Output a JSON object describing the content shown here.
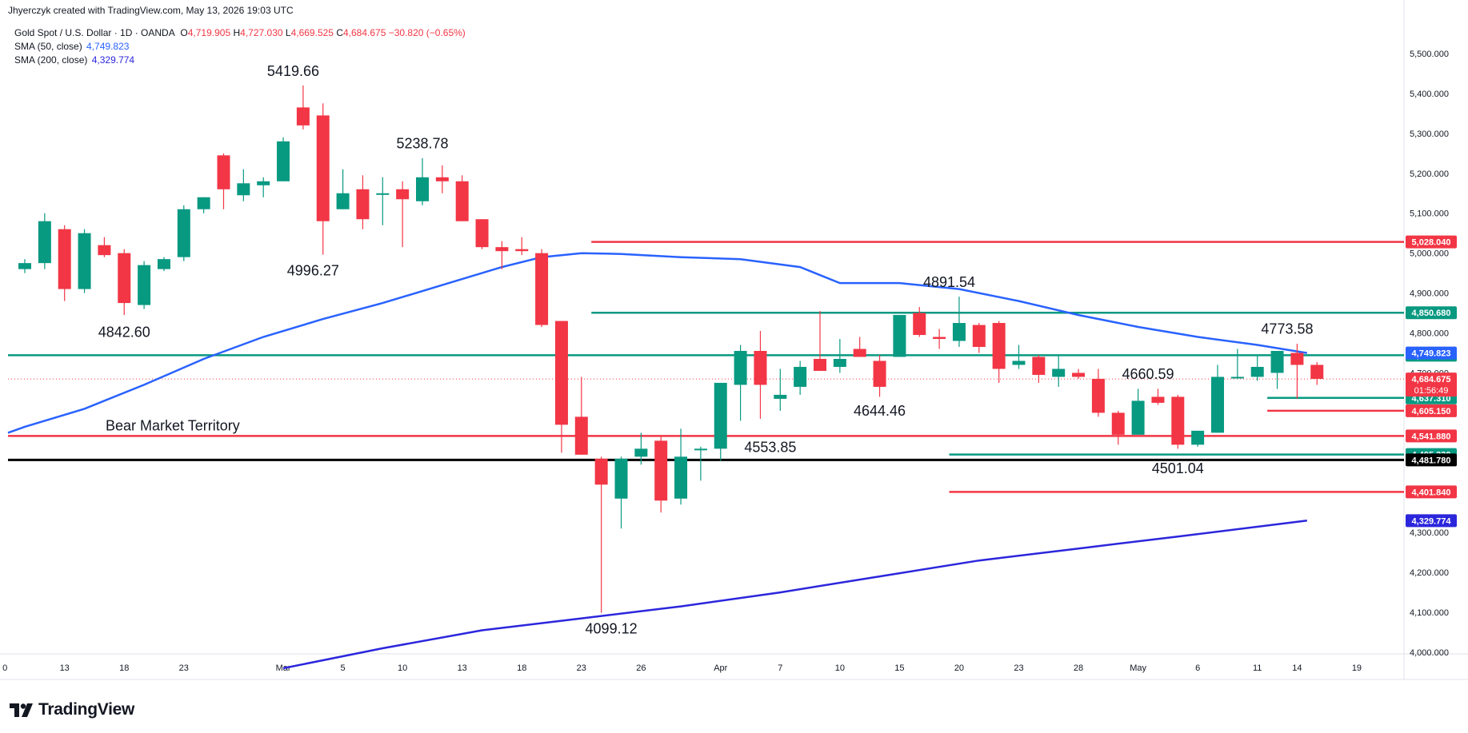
{
  "header": {
    "attribution": "Jhyerczyk created with TradingView.com, May 13, 2026 19:03 UTC"
  },
  "legend": {
    "title": "Gold Spot / U.S. Dollar · 1D · OANDA",
    "ohlc": [
      {
        "key": "O",
        "value": "4,719.905"
      },
      {
        "key": "H",
        "value": "4,727.030"
      },
      {
        "key": "L",
        "value": "4,669.525"
      },
      {
        "key": "C",
        "value": "4,684.675"
      }
    ],
    "change": "−30.820 (−0.65%)",
    "sma50": {
      "label": "SMA (50, close)",
      "value": "4,749.823",
      "color": "#2962ff"
    },
    "sma200": {
      "label": "SMA (200, close)",
      "value": "4,329.774",
      "color": "#2b26dc"
    }
  },
  "brand": {
    "name": "TradingView"
  },
  "chart_data": {
    "type": "candlestick",
    "instrument": "Gold Spot / U.S. Dollar",
    "timeframe": "1D",
    "ylim": [
      3950,
      5560
    ],
    "y_ticks": [
      {
        "value": 4000,
        "label": "4,000.000"
      },
      {
        "value": 4100,
        "label": "4,100.000"
      },
      {
        "value": 4200,
        "label": "4,200.000"
      },
      {
        "value": 4300,
        "label": "4,300.000"
      },
      {
        "value": 4400,
        "label": "4,400.000"
      },
      {
        "value": 4500,
        "label": "4,500.000"
      },
      {
        "value": 4600,
        "label": "4,600.000"
      },
      {
        "value": 4700,
        "label": "4,700.000"
      },
      {
        "value": 4800,
        "label": "4,800.000"
      },
      {
        "value": 4900,
        "label": "4,900.000"
      },
      {
        "value": 5000,
        "label": "5,000.000"
      },
      {
        "value": 5100,
        "label": "5,100.000"
      },
      {
        "value": 5200,
        "label": "5,200.000"
      },
      {
        "value": 5300,
        "label": "5,300.000"
      },
      {
        "value": 5400,
        "label": "5,400.000"
      },
      {
        "value": 5500,
        "label": "5,500.000"
      }
    ],
    "x_ticks": [
      {
        "i": -1,
        "label": "0"
      },
      {
        "i": 2,
        "label": "13"
      },
      {
        "i": 5,
        "label": "18"
      },
      {
        "i": 8,
        "label": "23"
      },
      {
        "i": 13,
        "label": "Mar"
      },
      {
        "i": 16,
        "label": "5"
      },
      {
        "i": 19,
        "label": "10"
      },
      {
        "i": 22,
        "label": "13"
      },
      {
        "i": 25,
        "label": "18"
      },
      {
        "i": 28,
        "label": "23"
      },
      {
        "i": 31,
        "label": "26"
      },
      {
        "i": 35,
        "label": "Apr"
      },
      {
        "i": 38,
        "label": "7"
      },
      {
        "i": 41,
        "label": "10"
      },
      {
        "i": 44,
        "label": "15"
      },
      {
        "i": 47,
        "label": "20"
      },
      {
        "i": 50,
        "label": "23"
      },
      {
        "i": 53,
        "label": "28"
      },
      {
        "i": 56,
        "label": "May"
      },
      {
        "i": 59,
        "label": "6"
      },
      {
        "i": 62,
        "label": "11"
      },
      {
        "i": 64,
        "label": "14"
      },
      {
        "i": 67,
        "label": "19"
      }
    ],
    "candles": [
      {
        "o": 4960,
        "h": 4985,
        "l": 4950,
        "c": 4975
      },
      {
        "o": 4975,
        "h": 5100,
        "l": 4960,
        "c": 5080
      },
      {
        "o": 5060,
        "h": 5070,
        "l": 4880,
        "c": 4910
      },
      {
        "o": 4910,
        "h": 5060,
        "l": 4900,
        "c": 5050
      },
      {
        "o": 5020,
        "h": 5040,
        "l": 4990,
        "c": 4995
      },
      {
        "o": 5000,
        "h": 5010,
        "l": 4845,
        "c": 4875
      },
      {
        "o": 4870,
        "h": 4980,
        "l": 4860,
        "c": 4970
      },
      {
        "o": 4960,
        "h": 4990,
        "l": 4955,
        "c": 4985
      },
      {
        "o": 4990,
        "h": 5120,
        "l": 4980,
        "c": 5110
      },
      {
        "o": 5110,
        "h": 5140,
        "l": 5100,
        "c": 5140
      },
      {
        "o": 5245,
        "h": 5250,
        "l": 5110,
        "c": 5160
      },
      {
        "o": 5145,
        "h": 5210,
        "l": 5130,
        "c": 5175
      },
      {
        "o": 5170,
        "h": 5190,
        "l": 5140,
        "c": 5180
      },
      {
        "o": 5180,
        "h": 5290,
        "l": 5180,
        "c": 5280
      },
      {
        "o": 5365,
        "h": 5420,
        "l": 5310,
        "c": 5320
      },
      {
        "o": 5345,
        "h": 5375,
        "l": 4996,
        "c": 5080
      },
      {
        "o": 5110,
        "h": 5210,
        "l": 5110,
        "c": 5150
      },
      {
        "o": 5160,
        "h": 5195,
        "l": 5060,
        "c": 5085
      },
      {
        "o": 5150,
        "h": 5190,
        "l": 5070,
        "c": 5150
      },
      {
        "o": 5160,
        "h": 5180,
        "l": 5015,
        "c": 5135
      },
      {
        "o": 5130,
        "h": 5238,
        "l": 5120,
        "c": 5190
      },
      {
        "o": 5190,
        "h": 5220,
        "l": 5150,
        "c": 5180
      },
      {
        "o": 5180,
        "h": 5195,
        "l": 5080,
        "c": 5080
      },
      {
        "o": 5085,
        "h": 5085,
        "l": 5010,
        "c": 5015
      },
      {
        "o": 5015,
        "h": 5030,
        "l": 4960,
        "c": 5005
      },
      {
        "o": 5010,
        "h": 5040,
        "l": 4995,
        "c": 5005
      },
      {
        "o": 5000,
        "h": 5010,
        "l": 4815,
        "c": 4820
      },
      {
        "o": 4830,
        "h": 4830,
        "l": 4500,
        "c": 4570
      },
      {
        "o": 4590,
        "h": 4690,
        "l": 4495,
        "c": 4495
      },
      {
        "o": 4485,
        "h": 4490,
        "l": 4099,
        "c": 4420
      },
      {
        "o": 4385,
        "h": 4490,
        "l": 4310,
        "c": 4485
      },
      {
        "o": 4490,
        "h": 4550,
        "l": 4470,
        "c": 4510
      },
      {
        "o": 4530,
        "h": 4540,
        "l": 4350,
        "c": 4380
      },
      {
        "o": 4385,
        "h": 4560,
        "l": 4370,
        "c": 4490
      },
      {
        "o": 4510,
        "h": 4515,
        "l": 4430,
        "c": 4510
      },
      {
        "o": 4510,
        "h": 4675,
        "l": 4480,
        "c": 4675
      },
      {
        "o": 4670,
        "h": 4770,
        "l": 4580,
        "c": 4755
      },
      {
        "o": 4755,
        "h": 4805,
        "l": 4585,
        "c": 4670
      },
      {
        "o": 4635,
        "h": 4710,
        "l": 4605,
        "c": 4645
      },
      {
        "o": 4665,
        "h": 4730,
        "l": 4645,
        "c": 4715
      },
      {
        "o": 4735,
        "h": 4855,
        "l": 4705,
        "c": 4705
      },
      {
        "o": 4715,
        "h": 4785,
        "l": 4700,
        "c": 4735
      },
      {
        "o": 4760,
        "h": 4790,
        "l": 4740,
        "c": 4740
      },
      {
        "o": 4730,
        "h": 4745,
        "l": 4640,
        "c": 4665
      },
      {
        "o": 4740,
        "h": 4845,
        "l": 4740,
        "c": 4845
      },
      {
        "o": 4850,
        "h": 4865,
        "l": 4790,
        "c": 4795
      },
      {
        "o": 4790,
        "h": 4810,
        "l": 4760,
        "c": 4785
      },
      {
        "o": 4780,
        "h": 4891,
        "l": 4765,
        "c": 4825
      },
      {
        "o": 4820,
        "h": 4825,
        "l": 4750,
        "c": 4765
      },
      {
        "o": 4825,
        "h": 4830,
        "l": 4675,
        "c": 4710
      },
      {
        "o": 4720,
        "h": 4770,
        "l": 4710,
        "c": 4730
      },
      {
        "o": 4740,
        "h": 4745,
        "l": 4675,
        "c": 4695
      },
      {
        "o": 4690,
        "h": 4745,
        "l": 4665,
        "c": 4710
      },
      {
        "o": 4700,
        "h": 4710,
        "l": 4685,
        "c": 4690
      },
      {
        "o": 4685,
        "h": 4710,
        "l": 4590,
        "c": 4600
      },
      {
        "o": 4600,
        "h": 4605,
        "l": 4520,
        "c": 4545
      },
      {
        "o": 4545,
        "h": 4660,
        "l": 4545,
        "c": 4630
      },
      {
        "o": 4640,
        "h": 4660,
        "l": 4620,
        "c": 4625
      },
      {
        "o": 4640,
        "h": 4645,
        "l": 4510,
        "c": 4520
      },
      {
        "o": 4520,
        "h": 4555,
        "l": 4515,
        "c": 4555
      },
      {
        "o": 4550,
        "h": 4720,
        "l": 4550,
        "c": 4690
      },
      {
        "o": 4690,
        "h": 4760,
        "l": 4685,
        "c": 4690
      },
      {
        "o": 4690,
        "h": 4745,
        "l": 4680,
        "c": 4715
      },
      {
        "o": 4700,
        "h": 4745,
        "l": 4660,
        "c": 4755
      },
      {
        "o": 4750,
        "h": 4773,
        "l": 4635,
        "c": 4720
      },
      {
        "o": 4720,
        "h": 4727,
        "l": 4670,
        "c": 4685
      }
    ],
    "sma50": [
      [
        -1,
        4550
      ],
      [
        0,
        4565
      ],
      [
        3,
        4610
      ],
      [
        6,
        4670
      ],
      [
        9,
        4735
      ],
      [
        12,
        4790
      ],
      [
        15,
        4835
      ],
      [
        18,
        4875
      ],
      [
        21,
        4920
      ],
      [
        24,
        4965
      ],
      [
        26,
        4990
      ],
      [
        28,
        5000
      ],
      [
        30,
        4998
      ],
      [
        33,
        4990
      ],
      [
        36,
        4985
      ],
      [
        39,
        4965
      ],
      [
        41,
        4925
      ],
      [
        44,
        4925
      ],
      [
        47,
        4910
      ],
      [
        50,
        4880
      ],
      [
        53,
        4845
      ],
      [
        56,
        4815
      ],
      [
        59,
        4790
      ],
      [
        62,
        4770
      ],
      [
        64.5,
        4749.8
      ]
    ],
    "sma200": [
      [
        13,
        3960
      ],
      [
        18,
        4010
      ],
      [
        23,
        4055
      ],
      [
        28,
        4085
      ],
      [
        33,
        4115
      ],
      [
        38,
        4150
      ],
      [
        43,
        4190
      ],
      [
        48,
        4230
      ],
      [
        53,
        4260
      ],
      [
        58,
        4290
      ],
      [
        64.5,
        4329.8
      ]
    ],
    "hlines": [
      {
        "price": 5028.04,
        "label": "5,028.040",
        "color": "#f23645",
        "start": 28.5,
        "end": 69.5
      },
      {
        "price": 4850.68,
        "label": "4,850.680",
        "color": "#089981",
        "start": 28.5,
        "end": 69.5
      },
      {
        "price": 4744.34,
        "label": "4,744.340",
        "color": "#089981",
        "start": -1.5,
        "end": 69.5
      },
      {
        "price": 4637.31,
        "label": "4,637.310",
        "color": "#089981",
        "start": 62.5,
        "end": 69.5
      },
      {
        "price": 4605.15,
        "label": "4,605.150",
        "color": "#f23645",
        "start": 62.5,
        "end": 69.5
      },
      {
        "price": 4541.88,
        "label": "4,541.880",
        "color": "#f23645",
        "start": -1.5,
        "end": 69.5
      },
      {
        "price": 4495.33,
        "label": "4,495.330",
        "color": "#089981",
        "start": 46.5,
        "end": 69.5
      },
      {
        "price": 4481.78,
        "label": "4,481.780",
        "color": "#000000",
        "start": -1.5,
        "end": 69.5
      },
      {
        "price": 4401.84,
        "label": "4,401.840",
        "color": "#f23645",
        "start": 46.5,
        "end": 69.5
      }
    ],
    "price_badges": [
      {
        "price": 4749.823,
        "label": "4,749.823",
        "color": "#2962ff"
      },
      {
        "price": 4684.675,
        "label": "4,684.675",
        "timer": "01:56:49",
        "color": "#f23645"
      },
      {
        "price": 4329.774,
        "label": "4,329.774",
        "color": "#2b26dc"
      }
    ],
    "last_price": 4684.675,
    "annotations": [
      {
        "text": "5419.66",
        "i": 13.5,
        "price": 5419.66,
        "pos": "above"
      },
      {
        "text": "5238.78",
        "i": 20,
        "price": 5238.78,
        "pos": "above"
      },
      {
        "text": "4996.27",
        "i": 14.5,
        "price": 4996.27,
        "pos": "below"
      },
      {
        "text": "4842.60",
        "i": 5,
        "price": 4842.6,
        "pos": "below"
      },
      {
        "text": "4099.12",
        "i": 29.5,
        "price": 4099.12,
        "pos": "below"
      },
      {
        "text": "4553.85",
        "i": 37.5,
        "price": 4553.85,
        "pos": "below"
      },
      {
        "text": "4644.46",
        "i": 43,
        "price": 4644.46,
        "pos": "below"
      },
      {
        "text": "4891.54",
        "i": 46.5,
        "price": 4891.54,
        "pos": "above"
      },
      {
        "text": "4660.59",
        "i": 56.5,
        "price": 4660.59,
        "pos": "above"
      },
      {
        "text": "4501.04",
        "i": 58,
        "price": 4501.04,
        "pos": "below"
      },
      {
        "text": "4773.58",
        "i": 63.5,
        "price": 4773.58,
        "pos": "above"
      },
      {
        "text": "Bear Market Territory",
        "i": 8.5,
        "price": 4541.88,
        "pos": "above"
      }
    ],
    "colors": {
      "up": "#089981",
      "down": "#f23645"
    }
  }
}
